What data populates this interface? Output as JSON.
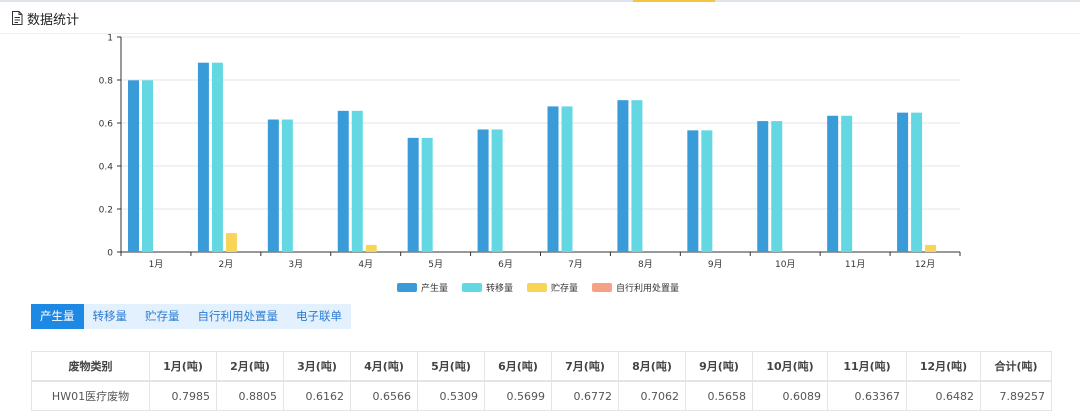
{
  "header": {
    "title": "数据统计",
    "icon": "document-icon"
  },
  "tabs": [
    {
      "label": "产生量",
      "active": true
    },
    {
      "label": "转移量",
      "active": false
    },
    {
      "label": "贮存量",
      "active": false
    },
    {
      "label": "自行利用处置量",
      "active": false
    },
    {
      "label": "电子联单",
      "active": false
    }
  ],
  "table": {
    "headers": [
      "废物类别",
      "1月(吨)",
      "2月(吨)",
      "3月(吨)",
      "4月(吨)",
      "5月(吨)",
      "6月(吨)",
      "7月(吨)",
      "8月(吨)",
      "9月(吨)",
      "10月(吨)",
      "11月(吨)",
      "12月(吨)",
      "合计(吨)"
    ],
    "rows": [
      [
        "HW01医疗废物",
        "0.7985",
        "0.8805",
        "0.6162",
        "0.6566",
        "0.5309",
        "0.5699",
        "0.6772",
        "0.7062",
        "0.5658",
        "0.6089",
        "0.63367",
        "0.6482",
        "7.89257"
      ]
    ]
  },
  "chart_data": {
    "type": "bar",
    "categories": [
      "1月",
      "2月",
      "3月",
      "4月",
      "5月",
      "6月",
      "7月",
      "8月",
      "9月",
      "10月",
      "11月",
      "12月"
    ],
    "series": [
      {
        "name": "产生量",
        "color": "#3a9bd9",
        "values": [
          0.7985,
          0.8805,
          0.6162,
          0.6566,
          0.5309,
          0.5699,
          0.6772,
          0.7062,
          0.5658,
          0.6089,
          0.63367,
          0.6482
        ]
      },
      {
        "name": "转移量",
        "color": "#63d8e3",
        "values": [
          0.7985,
          0.8805,
          0.6162,
          0.6566,
          0.5309,
          0.5699,
          0.6772,
          0.7062,
          0.5658,
          0.6089,
          0.63367,
          0.6482
        ]
      },
      {
        "name": "贮存量",
        "color": "#f8d557",
        "values": [
          0,
          0.088,
          0,
          0.033,
          0,
          0,
          0,
          0,
          0,
          0,
          0,
          0.033
        ]
      },
      {
        "name": "自行利用处置量",
        "color": "#f5a184",
        "values": [
          0,
          0,
          0,
          0,
          0,
          0,
          0,
          0,
          0,
          0,
          0,
          0
        ]
      }
    ],
    "ylim": [
      0,
      1
    ],
    "yticks": [
      "0",
      "0.2",
      "0.4",
      "0.6",
      "0.8",
      "1"
    ],
    "grid": true,
    "legend_position": "bottom-center"
  }
}
